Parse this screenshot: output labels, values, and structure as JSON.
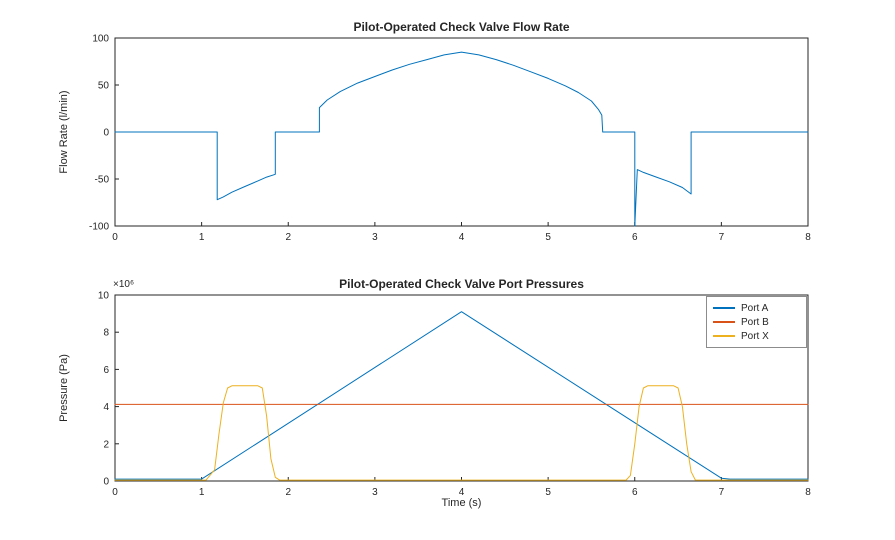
{
  "figure": {
    "background": "#ffffff",
    "axes_color": "#262626",
    "tick_label_color": "#262626"
  },
  "chart_data": [
    {
      "type": "line",
      "title": "Pilot-Operated Check Valve Flow Rate",
      "xlabel": "",
      "ylabel": "Flow Rate (l/min)",
      "xlim": [
        0,
        8
      ],
      "ylim": [
        -100,
        100
      ],
      "xticks": [
        0,
        1,
        2,
        3,
        4,
        5,
        6,
        7,
        8
      ],
      "yticks": [
        -100,
        -50,
        0,
        50,
        100
      ],
      "grid": false,
      "legend": null,
      "series": [
        {
          "name": "Flow Rate",
          "color": "#0072BD",
          "points": [
            [
              0,
              0
            ],
            [
              1.18,
              0
            ],
            [
              1.18,
              -72
            ],
            [
              1.25,
              -69
            ],
            [
              1.35,
              -64
            ],
            [
              1.5,
              -58
            ],
            [
              1.65,
              -52
            ],
            [
              1.75,
              -48
            ],
            [
              1.85,
              -45
            ],
            [
              1.85,
              0
            ],
            [
              2.36,
              0
            ],
            [
              2.36,
              26
            ],
            [
              2.45,
              34
            ],
            [
              2.6,
              43
            ],
            [
              2.8,
              52
            ],
            [
              3.0,
              59
            ],
            [
              3.2,
              66
            ],
            [
              3.4,
              72
            ],
            [
              3.6,
              77
            ],
            [
              3.8,
              82
            ],
            [
              4.0,
              85
            ],
            [
              4.2,
              82
            ],
            [
              4.4,
              77
            ],
            [
              4.6,
              71
            ],
            [
              4.8,
              64
            ],
            [
              5.0,
              57
            ],
            [
              5.2,
              49
            ],
            [
              5.35,
              42
            ],
            [
              5.5,
              33
            ],
            [
              5.58,
              24
            ],
            [
              5.62,
              18
            ],
            [
              5.63,
              0
            ],
            [
              6.0,
              0
            ],
            [
              6.0,
              -100
            ],
            [
              6.03,
              -40
            ],
            [
              6.1,
              -43
            ],
            [
              6.25,
              -48
            ],
            [
              6.4,
              -53
            ],
            [
              6.55,
              -59
            ],
            [
              6.65,
              -66
            ],
            [
              6.65,
              0
            ],
            [
              8,
              0
            ]
          ]
        }
      ]
    },
    {
      "type": "line",
      "title": "Pilot-Operated Check Valve Port Pressures",
      "xlabel": "Time (s)",
      "ylabel": "Pressure (Pa)",
      "y_multiplier_label": "×10⁶",
      "y_unit_note": "values are in units of 10^6 Pa",
      "xlim": [
        0,
        8
      ],
      "ylim": [
        0,
        10
      ],
      "xticks": [
        0,
        1,
        2,
        3,
        4,
        5,
        6,
        7,
        8
      ],
      "yticks": [
        0,
        2,
        4,
        6,
        8,
        10
      ],
      "grid": false,
      "legend_position": "northeast",
      "series": [
        {
          "name": "Port A",
          "color": "#0072BD",
          "points": [
            [
              0,
              0.1
            ],
            [
              1.0,
              0.1
            ],
            [
              4.0,
              9.1
            ],
            [
              7.0,
              0.15
            ],
            [
              7.1,
              0.1
            ],
            [
              8,
              0.1
            ]
          ]
        },
        {
          "name": "Port B",
          "color": "#D95319",
          "points": [
            [
              0,
              4.12
            ],
            [
              8,
              4.12
            ]
          ]
        },
        {
          "name": "Port X",
          "color": "#EDB120",
          "points": [
            [
              0,
              0.05
            ],
            [
              1.05,
              0.05
            ],
            [
              1.15,
              0.6
            ],
            [
              1.2,
              2.5
            ],
            [
              1.25,
              4.2
            ],
            [
              1.3,
              5.0
            ],
            [
              1.35,
              5.12
            ],
            [
              1.65,
              5.12
            ],
            [
              1.7,
              5.0
            ],
            [
              1.75,
              3.5
            ],
            [
              1.8,
              1.2
            ],
            [
              1.85,
              0.2
            ],
            [
              1.9,
              0.05
            ],
            [
              5.9,
              0.05
            ],
            [
              5.95,
              0.3
            ],
            [
              6.0,
              2.0
            ],
            [
              6.05,
              4.0
            ],
            [
              6.1,
              5.0
            ],
            [
              6.15,
              5.12
            ],
            [
              6.45,
              5.12
            ],
            [
              6.5,
              5.0
            ],
            [
              6.55,
              4.0
            ],
            [
              6.6,
              2.0
            ],
            [
              6.65,
              0.5
            ],
            [
              6.7,
              0.05
            ],
            [
              8,
              0.05
            ]
          ]
        }
      ]
    }
  ]
}
